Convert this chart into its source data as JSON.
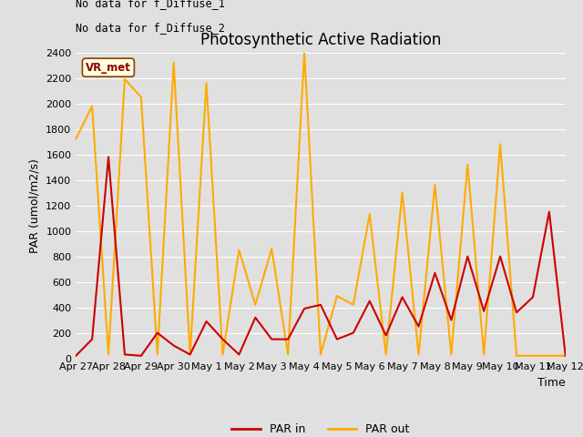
{
  "title": "Photosynthetic Active Radiation",
  "xlabel": "Time",
  "ylabel": "PAR (umol/m2/s)",
  "annotations": [
    "No data for f_Diffuse_1",
    "No data for f_Diffuse_2"
  ],
  "vr_met_label": "VR_met",
  "legend_entries": [
    "PAR in",
    "PAR out"
  ],
  "legend_colors": [
    "#cc0000",
    "#ffaa00"
  ],
  "background_color": "#e0e0e0",
  "plot_bg_color": "#e0e0e0",
  "ylim": [
    0,
    2400
  ],
  "yticks": [
    0,
    200,
    400,
    600,
    800,
    1000,
    1200,
    1400,
    1600,
    1800,
    2000,
    2200,
    2400
  ],
  "x_labels": [
    "Apr 27",
    "Apr 28",
    "Apr 29",
    "Apr 30",
    "May 1",
    "May 2",
    "May 3",
    "May 4",
    "May 5",
    "May 6",
    "May 7",
    "May 8",
    "May 9",
    "May 10",
    "May 11",
    "May 12"
  ],
  "par_in_x": [
    0,
    1,
    2,
    3,
    4,
    5,
    6,
    7,
    8,
    9,
    10,
    11,
    12,
    13,
    14,
    15,
    16,
    17,
    18,
    19,
    20,
    21,
    22,
    23,
    24,
    25,
    26,
    27,
    28,
    29,
    30
  ],
  "par_in_y": [
    20,
    150,
    1580,
    30,
    20,
    200,
    100,
    30,
    290,
    150,
    30,
    320,
    150,
    150,
    390,
    420,
    150,
    200,
    450,
    180,
    480,
    250,
    670,
    300,
    800,
    370,
    800,
    360,
    480,
    1150,
    20
  ],
  "par_out_x": [
    0,
    1,
    2,
    3,
    4,
    5,
    6,
    7,
    8,
    9,
    10,
    11,
    12,
    13,
    14,
    15,
    16,
    17,
    18,
    19,
    20,
    21,
    22,
    23,
    24,
    25,
    26,
    27,
    28,
    29,
    30
  ],
  "par_out_y": [
    1720,
    1980,
    30,
    2190,
    2050,
    30,
    2320,
    30,
    2160,
    30,
    850,
    420,
    860,
    30,
    2400,
    30,
    490,
    420,
    1130,
    30,
    1300,
    30,
    1360,
    30,
    1520,
    30,
    1680,
    20,
    20,
    20,
    20
  ],
  "par_in_color": "#cc0000",
  "par_out_color": "#ffaa00",
  "line_width": 1.5,
  "grid_color": "#ffffff",
  "title_fontsize": 12,
  "tick_fontsize": 8,
  "axis_label_fontsize": 9
}
